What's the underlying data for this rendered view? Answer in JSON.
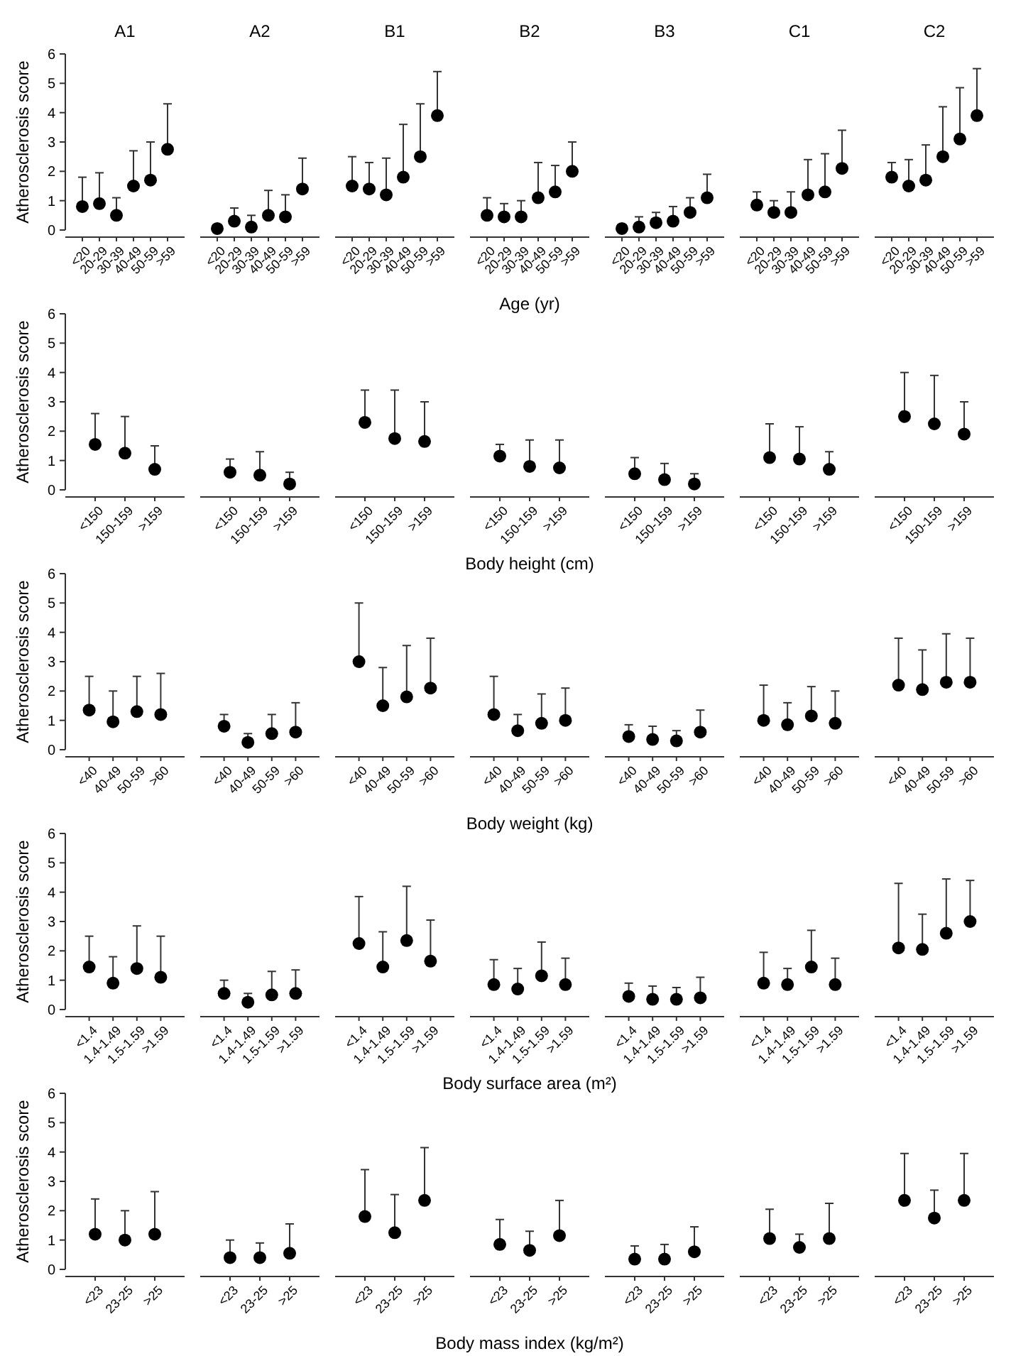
{
  "chart_data": [
    {
      "type": "scatter",
      "title": "A1",
      "ylabel": "Atherosclerosis score",
      "categories": [
        "<20",
        "20-29",
        "30-39",
        "40-49",
        "50-59",
        ">59"
      ],
      "values": [
        0.8,
        0.9,
        0.5,
        1.5,
        1.7,
        2.75
      ],
      "errors": [
        [
          0.8,
          1.8
        ],
        [
          0.9,
          1.95
        ],
        [
          0.5,
          1.1
        ],
        [
          1.5,
          2.7
        ],
        [
          1.7,
          3.0
        ],
        [
          2.75,
          4.3
        ]
      ],
      "ylim": [
        0,
        6
      ],
      "yticks": [
        0,
        1,
        2,
        3,
        4,
        5,
        6
      ],
      "marker": "circle",
      "color": "#000000"
    },
    {
      "type": "scatter",
      "title": "A2",
      "categories": [
        "<20",
        "20-29",
        "30-39",
        "40-49",
        "50-59",
        ">59"
      ],
      "values": [
        0.05,
        0.3,
        0.1,
        0.5,
        0.45,
        1.4
      ],
      "errors": [
        null,
        [
          0.3,
          0.75
        ],
        [
          0.1,
          0.5
        ],
        [
          0.5,
          1.35
        ],
        [
          0.45,
          1.2
        ],
        [
          1.4,
          2.45
        ]
      ],
      "ylim": [
        0,
        6
      ],
      "tick_labels": "x",
      "marker": "circle",
      "color": "#000000"
    },
    {
      "type": "scatter",
      "title": "B1",
      "categories": [
        "<20",
        "20-29",
        "30-39",
        "40-49",
        "50-59",
        ">59"
      ],
      "values": [
        1.5,
        1.4,
        1.2,
        1.8,
        2.5,
        3.9
      ],
      "errors": [
        [
          1.5,
          2.5
        ],
        [
          1.4,
          2.3
        ],
        [
          1.2,
          2.45
        ],
        [
          1.8,
          3.6
        ],
        [
          2.5,
          4.3
        ],
        [
          3.9,
          5.4
        ]
      ],
      "ylim": [
        0,
        6
      ],
      "tick_labels": "x",
      "marker": "circle",
      "color": "#000000"
    },
    {
      "type": "scatter",
      "title": "B2",
      "xlabel": "Age (yr)",
      "categories": [
        "<20",
        "20-29",
        "30-39",
        "40-49",
        "50-59",
        ">59"
      ],
      "values": [
        0.5,
        0.45,
        0.45,
        1.1,
        1.3,
        2.0
      ],
      "errors": [
        [
          0.5,
          1.1
        ],
        [
          0.45,
          0.9
        ],
        [
          0.45,
          1.0
        ],
        [
          1.1,
          2.3
        ],
        [
          1.3,
          2.2
        ],
        [
          2.0,
          3.0
        ]
      ],
      "ylim": [
        0,
        6
      ],
      "tick_labels": "x",
      "marker": "circle",
      "color": "#000000"
    },
    {
      "type": "scatter",
      "title": "B3",
      "categories": [
        "<20",
        "20-29",
        "30-39",
        "40-49",
        "50-59",
        ">59"
      ],
      "values": [
        0.05,
        0.1,
        0.25,
        0.3,
        0.6,
        1.1
      ],
      "errors": [
        null,
        [
          0.1,
          0.45
        ],
        [
          0.25,
          0.6
        ],
        [
          0.3,
          0.8
        ],
        [
          0.6,
          1.1
        ],
        [
          1.1,
          1.9
        ]
      ],
      "ylim": [
        0,
        6
      ],
      "tick_labels": "x",
      "marker": "circle",
      "color": "#000000"
    },
    {
      "type": "scatter",
      "title": "C1",
      "categories": [
        "<20",
        "20-29",
        "30-39",
        "40-49",
        "50-59",
        ">59"
      ],
      "values": [
        0.85,
        0.6,
        0.6,
        1.2,
        1.3,
        2.1
      ],
      "errors": [
        [
          0.85,
          1.3
        ],
        [
          0.6,
          1.0
        ],
        [
          0.6,
          1.3
        ],
        [
          1.2,
          2.4
        ],
        [
          1.3,
          2.6
        ],
        [
          2.1,
          3.4
        ]
      ],
      "ylim": [
        0,
        6
      ],
      "tick_labels": "x",
      "marker": "circle",
      "color": "#000000"
    },
    {
      "type": "scatter",
      "title": "C2",
      "categories": [
        "<20",
        "20-29",
        "30-39",
        "40-49",
        "50-59",
        ">59"
      ],
      "values": [
        1.8,
        1.5,
        1.7,
        2.5,
        3.1,
        3.9
      ],
      "errors": [
        [
          1.8,
          2.3
        ],
        [
          1.5,
          2.4
        ],
        [
          1.7,
          2.9
        ],
        [
          2.5,
          4.2
        ],
        [
          3.1,
          4.85
        ],
        [
          3.9,
          5.5
        ]
      ],
      "ylim": [
        0,
        6
      ],
      "tick_labels": "x",
      "marker": "circle",
      "color": "#000000"
    },
    {
      "type": "scatter",
      "ylabel": "Atherosclerosis score",
      "categories": [
        "<150",
        "150-159",
        ">159"
      ],
      "values": [
        1.55,
        1.25,
        0.7
      ],
      "errors": [
        [
          1.55,
          2.6
        ],
        [
          1.25,
          2.5
        ],
        [
          0.7,
          1.5
        ]
      ],
      "ylim": [
        0,
        6
      ],
      "yticks": [
        0,
        1,
        2,
        3,
        4,
        5,
        6
      ],
      "marker": "circle",
      "color": "#000000"
    },
    {
      "type": "scatter",
      "categories": [
        "<150",
        "150-159",
        ">159"
      ],
      "values": [
        0.6,
        0.5,
        0.2
      ],
      "errors": [
        [
          0.6,
          1.05
        ],
        [
          0.5,
          1.3
        ],
        [
          0.2,
          0.6
        ]
      ],
      "ylim": [
        0,
        6
      ],
      "tick_labels": "x",
      "marker": "circle",
      "color": "#000000"
    },
    {
      "type": "scatter",
      "categories": [
        "<150",
        "150-159",
        ">159"
      ],
      "values": [
        2.3,
        1.75,
        1.65
      ],
      "errors": [
        [
          2.3,
          3.4
        ],
        [
          1.75,
          3.4
        ],
        [
          1.65,
          3.0
        ]
      ],
      "ylim": [
        0,
        6
      ],
      "tick_labels": "x",
      "marker": "circle",
      "color": "#000000"
    },
    {
      "type": "scatter",
      "xlabel": "Body height (cm)",
      "categories": [
        "<150",
        "150-159",
        ">159"
      ],
      "values": [
        1.15,
        0.8,
        0.75
      ],
      "errors": [
        [
          1.15,
          1.55
        ],
        [
          0.8,
          1.7
        ],
        [
          0.75,
          1.7
        ]
      ],
      "ylim": [
        0,
        6
      ],
      "tick_labels": "x",
      "marker": "circle",
      "color": "#000000"
    },
    {
      "type": "scatter",
      "categories": [
        "<150",
        "150-159",
        ">159"
      ],
      "values": [
        0.55,
        0.35,
        0.2
      ],
      "errors": [
        [
          0.55,
          1.1
        ],
        [
          0.35,
          0.9
        ],
        [
          0.2,
          0.55
        ]
      ],
      "ylim": [
        0,
        6
      ],
      "tick_labels": "x",
      "marker": "circle",
      "color": "#000000"
    },
    {
      "type": "scatter",
      "categories": [
        "<150",
        "150-159",
        ">159"
      ],
      "values": [
        1.1,
        1.05,
        0.7
      ],
      "errors": [
        [
          1.1,
          2.25
        ],
        [
          1.05,
          2.15
        ],
        [
          0.7,
          1.3
        ]
      ],
      "ylim": [
        0,
        6
      ],
      "tick_labels": "x",
      "marker": "circle",
      "color": "#000000"
    },
    {
      "type": "scatter",
      "categories": [
        "<150",
        "150-159",
        ">159"
      ],
      "values": [
        2.5,
        2.25,
        1.9
      ],
      "errors": [
        [
          2.5,
          4.0
        ],
        [
          2.25,
          3.9
        ],
        [
          1.9,
          3.0
        ]
      ],
      "ylim": [
        0,
        6
      ],
      "tick_labels": "x",
      "marker": "circle",
      "color": "#000000"
    },
    {
      "type": "scatter",
      "ylabel": "Atherosclerosis score",
      "categories": [
        "<40",
        "40-49",
        "50-59",
        ">60"
      ],
      "values": [
        1.35,
        0.95,
        1.3,
        1.2
      ],
      "errors": [
        [
          1.35,
          2.5
        ],
        [
          0.95,
          2.0
        ],
        [
          1.3,
          2.5
        ],
        [
          1.2,
          2.6
        ]
      ],
      "ylim": [
        0,
        6
      ],
      "yticks": [
        0,
        1,
        2,
        3,
        4,
        5,
        6
      ],
      "marker": "circle",
      "color": "#000000"
    },
    {
      "type": "scatter",
      "categories": [
        "<40",
        "40-49",
        "50-59",
        ">60"
      ],
      "values": [
        0.8,
        0.25,
        0.55,
        0.6
      ],
      "errors": [
        [
          0.8,
          1.2
        ],
        [
          0.25,
          0.55
        ],
        [
          0.55,
          1.2
        ],
        [
          0.6,
          1.6
        ]
      ],
      "ylim": [
        0,
        6
      ],
      "tick_labels": "x",
      "marker": "circle",
      "color": "#000000"
    },
    {
      "type": "scatter",
      "categories": [
        "<40",
        "40-49",
        "50-59",
        ">60"
      ],
      "values": [
        3.0,
        1.5,
        1.8,
        2.1
      ],
      "errors": [
        [
          3.0,
          5.0
        ],
        [
          1.5,
          2.8
        ],
        [
          1.8,
          3.55
        ],
        [
          2.1,
          3.8
        ]
      ],
      "ylim": [
        0,
        6
      ],
      "tick_labels": "x",
      "marker": "circle",
      "color": "#000000"
    },
    {
      "type": "scatter",
      "xlabel": "Body weight (kg)",
      "categories": [
        "<40",
        "40-49",
        "50-59",
        ">60"
      ],
      "values": [
        1.2,
        0.65,
        0.9,
        1.0
      ],
      "errors": [
        [
          1.2,
          2.5
        ],
        [
          0.65,
          1.2
        ],
        [
          0.9,
          1.9
        ],
        [
          1.0,
          2.1
        ]
      ],
      "ylim": [
        0,
        6
      ],
      "tick_labels": "x",
      "marker": "circle",
      "color": "#000000"
    },
    {
      "type": "scatter",
      "categories": [
        "<40",
        "40-49",
        "50-59",
        ">60"
      ],
      "values": [
        0.45,
        0.35,
        0.3,
        0.6
      ],
      "errors": [
        [
          0.45,
          0.85
        ],
        [
          0.35,
          0.8
        ],
        [
          0.3,
          0.65
        ],
        [
          0.6,
          1.35
        ]
      ],
      "ylim": [
        0,
        6
      ],
      "tick_labels": "x",
      "marker": "circle",
      "color": "#000000"
    },
    {
      "type": "scatter",
      "categories": [
        "<40",
        "40-49",
        "50-59",
        ">60"
      ],
      "values": [
        1.0,
        0.85,
        1.15,
        0.9
      ],
      "errors": [
        [
          1.0,
          2.2
        ],
        [
          0.85,
          1.6
        ],
        [
          1.15,
          2.15
        ],
        [
          0.9,
          2.0
        ]
      ],
      "ylim": [
        0,
        6
      ],
      "tick_labels": "x",
      "marker": "circle",
      "color": "#000000"
    },
    {
      "type": "scatter",
      "categories": [
        "<40",
        "40-49",
        "50-59",
        ">60"
      ],
      "values": [
        2.2,
        2.05,
        2.3,
        2.3
      ],
      "errors": [
        [
          2.2,
          3.8
        ],
        [
          2.05,
          3.4
        ],
        [
          2.3,
          3.95
        ],
        [
          2.3,
          3.8
        ]
      ],
      "ylim": [
        0,
        6
      ],
      "tick_labels": "x",
      "marker": "circle",
      "color": "#000000"
    },
    {
      "type": "scatter",
      "ylabel": "Atherosclerosis score",
      "categories": [
        "<1.4",
        "1.4-1.49",
        "1.5-1.59",
        ">1.59"
      ],
      "values": [
        1.45,
        0.9,
        1.4,
        1.1
      ],
      "errors": [
        [
          1.45,
          2.5
        ],
        [
          0.9,
          1.8
        ],
        [
          1.4,
          2.85
        ],
        [
          1.1,
          2.5
        ]
      ],
      "ylim": [
        0,
        6
      ],
      "yticks": [
        0,
        1,
        2,
        3,
        4,
        5,
        6
      ],
      "marker": "circle",
      "color": "#000000"
    },
    {
      "type": "scatter",
      "categories": [
        "<1.4",
        "1.4-1.49",
        "1.5-1.59",
        ">1.59"
      ],
      "values": [
        0.55,
        0.25,
        0.5,
        0.55
      ],
      "errors": [
        [
          0.55,
          1.0
        ],
        [
          0.25,
          0.55
        ],
        [
          0.5,
          1.3
        ],
        [
          0.55,
          1.35
        ]
      ],
      "ylim": [
        0,
        6
      ],
      "tick_labels": "x",
      "marker": "circle",
      "color": "#000000"
    },
    {
      "type": "scatter",
      "categories": [
        "<1.4",
        "1.4-1.49",
        "1.5-1.59",
        ">1.59"
      ],
      "values": [
        2.25,
        1.45,
        2.35,
        1.65
      ],
      "errors": [
        [
          2.25,
          3.85
        ],
        [
          1.45,
          2.65
        ],
        [
          2.35,
          4.2
        ],
        [
          1.65,
          3.05
        ]
      ],
      "ylim": [
        0,
        6
      ],
      "tick_labels": "x",
      "marker": "circle",
      "color": "#000000"
    },
    {
      "type": "scatter",
      "xlabel": "Body surface area (m²)",
      "categories": [
        "<1.4",
        "1.4-1.49",
        "1.5-1.59",
        ">1.59"
      ],
      "values": [
        0.85,
        0.7,
        1.15,
        0.85
      ],
      "errors": [
        [
          0.85,
          1.7
        ],
        [
          0.7,
          1.4
        ],
        [
          1.15,
          2.3
        ],
        [
          0.85,
          1.75
        ]
      ],
      "ylim": [
        0,
        6
      ],
      "tick_labels": "x",
      "marker": "circle",
      "color": "#000000"
    },
    {
      "type": "scatter",
      "categories": [
        "<1.4",
        "1.4-1.49",
        "1.5-1.59",
        ">1.59"
      ],
      "values": [
        0.45,
        0.35,
        0.35,
        0.4
      ],
      "errors": [
        [
          0.45,
          0.9
        ],
        [
          0.35,
          0.8
        ],
        [
          0.35,
          0.75
        ],
        [
          0.4,
          1.1
        ]
      ],
      "ylim": [
        0,
        6
      ],
      "tick_labels": "x",
      "marker": "circle",
      "color": "#000000"
    },
    {
      "type": "scatter",
      "categories": [
        "<1.4",
        "1.4-1.49",
        "1.5-1.59",
        ">1.59"
      ],
      "values": [
        0.9,
        0.85,
        1.45,
        0.85
      ],
      "errors": [
        [
          0.9,
          1.95
        ],
        [
          0.85,
          1.4
        ],
        [
          1.45,
          2.7
        ],
        [
          0.85,
          1.75
        ]
      ],
      "ylim": [
        0,
        6
      ],
      "tick_labels": "x",
      "marker": "circle",
      "color": "#000000"
    },
    {
      "type": "scatter",
      "categories": [
        "<1.4",
        "1.4-1.49",
        "1.5-1.59",
        ">1.59"
      ],
      "values": [
        2.1,
        2.05,
        2.6,
        3.0
      ],
      "errors": [
        [
          2.1,
          4.3
        ],
        [
          2.05,
          3.25
        ],
        [
          2.6,
          4.45
        ],
        [
          3.0,
          4.4
        ]
      ],
      "ylim": [
        0,
        6
      ],
      "tick_labels": "x",
      "marker": "circle",
      "color": "#000000"
    },
    {
      "type": "scatter",
      "ylabel": "Atherosclerosis score",
      "categories": [
        "<23",
        "23-25",
        ">25"
      ],
      "values": [
        1.2,
        1.0,
        1.2
      ],
      "errors": [
        [
          1.2,
          2.4
        ],
        [
          1.0,
          2.0
        ],
        [
          1.2,
          2.65
        ]
      ],
      "ylim": [
        0,
        6
      ],
      "yticks": [
        0,
        1,
        2,
        3,
        4,
        5,
        6
      ],
      "marker": "circle",
      "color": "#000000"
    },
    {
      "type": "scatter",
      "categories": [
        "<23",
        "23-25",
        ">25"
      ],
      "values": [
        0.4,
        0.4,
        0.55
      ],
      "errors": [
        [
          0.4,
          1.0
        ],
        [
          0.4,
          0.9
        ],
        [
          0.55,
          1.55
        ]
      ],
      "ylim": [
        0,
        6
      ],
      "tick_labels": "x",
      "marker": "circle",
      "color": "#000000"
    },
    {
      "type": "scatter",
      "categories": [
        "<23",
        "23-25",
        ">25"
      ],
      "values": [
        1.8,
        1.25,
        2.35
      ],
      "errors": [
        [
          1.8,
          3.4
        ],
        [
          1.25,
          2.55
        ],
        [
          2.35,
          4.15
        ]
      ],
      "ylim": [
        0,
        6
      ],
      "tick_labels": "x",
      "marker": "circle",
      "color": "#000000"
    },
    {
      "type": "scatter",
      "xlabel": "Body mass index (kg/m²)",
      "categories": [
        "<23",
        "23-25",
        ">25"
      ],
      "values": [
        0.85,
        0.65,
        1.15
      ],
      "errors": [
        [
          0.85,
          1.7
        ],
        [
          0.65,
          1.3
        ],
        [
          1.15,
          2.35
        ]
      ],
      "ylim": [
        0,
        6
      ],
      "tick_labels": "x",
      "marker": "circle",
      "color": "#000000"
    },
    {
      "type": "scatter",
      "categories": [
        "<23",
        "23-25",
        ">25"
      ],
      "values": [
        0.35,
        0.35,
        0.6
      ],
      "errors": [
        [
          0.35,
          0.8
        ],
        [
          0.35,
          0.85
        ],
        [
          0.6,
          1.45
        ]
      ],
      "ylim": [
        0,
        6
      ],
      "tick_labels": "x",
      "marker": "circle",
      "color": "#000000"
    },
    {
      "type": "scatter",
      "categories": [
        "<23",
        "23-25",
        ">25"
      ],
      "values": [
        1.05,
        0.75,
        1.05
      ],
      "errors": [
        [
          1.05,
          2.05
        ],
        [
          0.75,
          1.2
        ],
        [
          1.05,
          2.25
        ]
      ],
      "ylim": [
        0,
        6
      ],
      "tick_labels": "x",
      "marker": "circle",
      "color": "#000000"
    },
    {
      "type": "scatter",
      "categories": [
        "<23",
        "23-25",
        ">25"
      ],
      "values": [
        2.35,
        1.75,
        2.35
      ],
      "errors": [
        [
          2.35,
          3.95
        ],
        [
          1.75,
          2.7
        ],
        [
          2.35,
          3.95
        ]
      ],
      "ylim": [
        0,
        6
      ],
      "tick_labels": "x",
      "marker": "circle",
      "color": "#000000"
    }
  ]
}
